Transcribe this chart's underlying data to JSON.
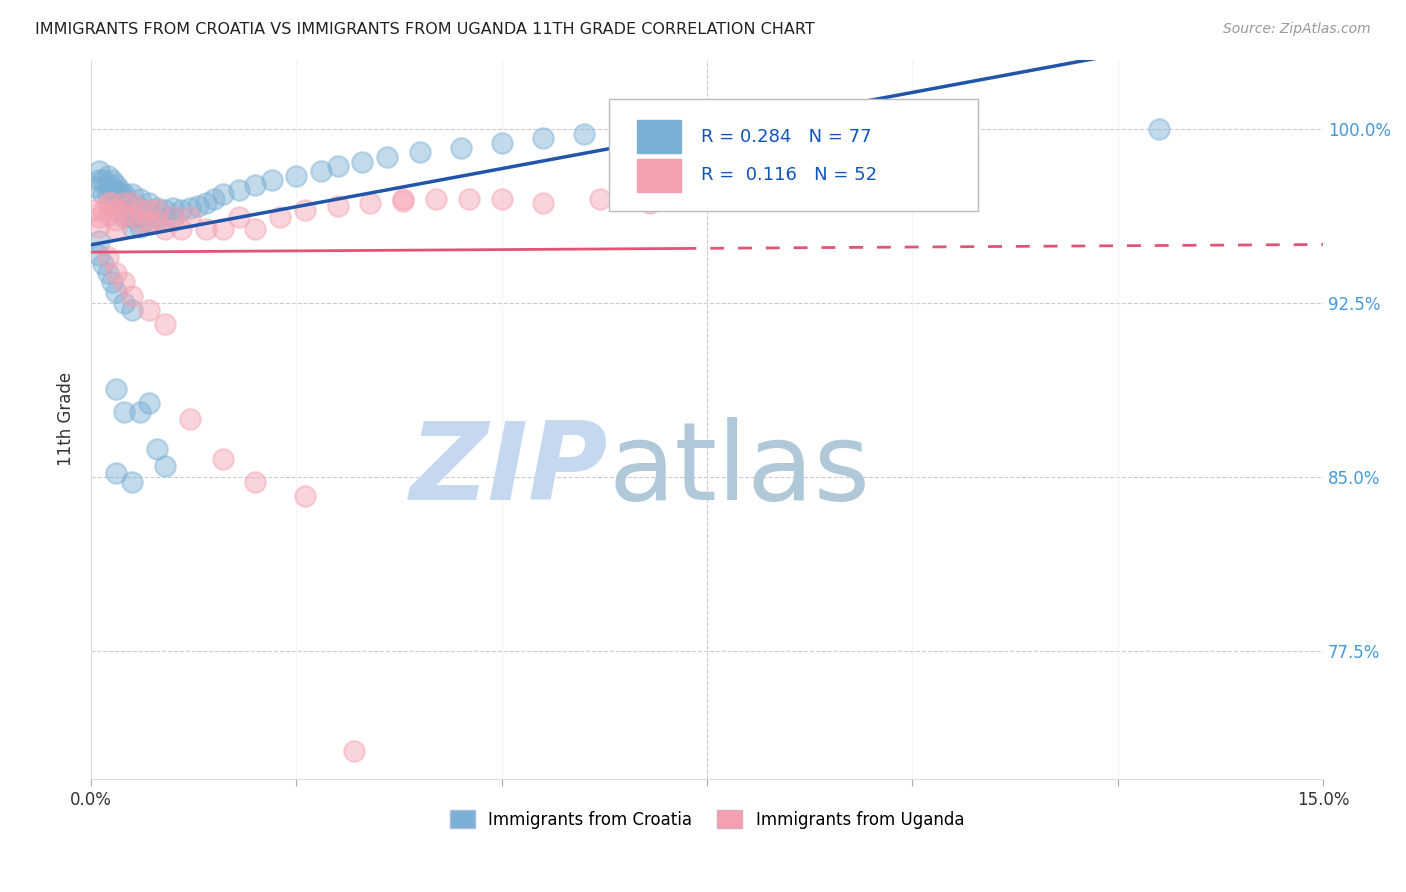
{
  "title": "IMMIGRANTS FROM CROATIA VS IMMIGRANTS FROM UGANDA 11TH GRADE CORRELATION CHART",
  "source": "Source: ZipAtlas.com",
  "ylabel": "11th Grade",
  "ytick_labels": [
    "100.0%",
    "92.5%",
    "85.0%",
    "77.5%"
  ],
  "ytick_values": [
    1.0,
    0.925,
    0.85,
    0.775
  ],
  "xlim": [
    0.0,
    0.15
  ],
  "ylim": [
    0.72,
    1.03
  ],
  "r_croatia": 0.284,
  "n_croatia": 77,
  "r_uganda": 0.116,
  "n_uganda": 52,
  "color_croatia": "#7BAFD4",
  "color_uganda": "#F4A0B0",
  "color_trendline_croatia": "#2255AA",
  "color_trendline_uganda": "#E05575",
  "watermark_zip": "ZIP",
  "watermark_atlas": "atlas",
  "watermark_color_zip": "#C5D8F0",
  "watermark_color_atlas": "#B0C8D8",
  "legend_label_croatia": "Immigrants from Croatia",
  "legend_label_uganda": "Immigrants from Uganda",
  "croatia_x": [
    0.0005,
    0.001,
    0.001,
    0.0015,
    0.0015,
    0.002,
    0.002,
    0.002,
    0.0025,
    0.0025,
    0.003,
    0.003,
    0.003,
    0.003,
    0.003,
    0.0035,
    0.0035,
    0.004,
    0.004,
    0.004,
    0.004,
    0.004,
    0.005,
    0.005,
    0.005,
    0.005,
    0.005,
    0.006,
    0.006,
    0.006,
    0.006,
    0.007,
    0.007,
    0.007,
    0.008,
    0.008,
    0.009,
    0.009,
    0.01,
    0.01,
    0.011,
    0.012,
    0.013,
    0.014,
    0.015,
    0.016,
    0.018,
    0.02,
    0.022,
    0.025,
    0.028,
    0.03,
    0.033,
    0.036,
    0.04,
    0.045,
    0.05,
    0.055,
    0.06,
    0.065,
    0.001,
    0.001,
    0.0015,
    0.002,
    0.0025,
    0.003,
    0.004,
    0.005,
    0.006,
    0.007,
    0.008,
    0.009,
    0.003,
    0.004,
    0.13,
    0.003,
    0.005
  ],
  "croatia_y": [
    0.975,
    0.982,
    0.978,
    0.978,
    0.972,
    0.98,
    0.976,
    0.972,
    0.978,
    0.974,
    0.976,
    0.974,
    0.972,
    0.968,
    0.965,
    0.974,
    0.968,
    0.972,
    0.97,
    0.968,
    0.965,
    0.962,
    0.972,
    0.968,
    0.965,
    0.962,
    0.958,
    0.97,
    0.966,
    0.962,
    0.958,
    0.968,
    0.964,
    0.96,
    0.966,
    0.962,
    0.965,
    0.961,
    0.966,
    0.962,
    0.965,
    0.966,
    0.967,
    0.968,
    0.97,
    0.972,
    0.974,
    0.976,
    0.978,
    0.98,
    0.982,
    0.984,
    0.986,
    0.988,
    0.99,
    0.992,
    0.994,
    0.996,
    0.998,
    1.0,
    0.952,
    0.946,
    0.942,
    0.938,
    0.934,
    0.93,
    0.925,
    0.922,
    0.878,
    0.882,
    0.862,
    0.855,
    0.888,
    0.878,
    1.0,
    0.852,
    0.848
  ],
  "uganda_x": [
    0.0005,
    0.001,
    0.001,
    0.0015,
    0.002,
    0.002,
    0.0025,
    0.003,
    0.003,
    0.003,
    0.004,
    0.004,
    0.005,
    0.005,
    0.006,
    0.006,
    0.007,
    0.007,
    0.008,
    0.008,
    0.009,
    0.01,
    0.011,
    0.012,
    0.014,
    0.016,
    0.018,
    0.02,
    0.023,
    0.026,
    0.03,
    0.034,
    0.038,
    0.042,
    0.046,
    0.05,
    0.055,
    0.062,
    0.068,
    0.072,
    0.002,
    0.003,
    0.004,
    0.005,
    0.007,
    0.009,
    0.012,
    0.016,
    0.02,
    0.026,
    0.032,
    0.038
  ],
  "uganda_y": [
    0.965,
    0.962,
    0.958,
    0.965,
    0.968,
    0.963,
    0.968,
    0.965,
    0.961,
    0.957,
    0.968,
    0.963,
    0.968,
    0.963,
    0.965,
    0.96,
    0.965,
    0.96,
    0.965,
    0.96,
    0.957,
    0.962,
    0.957,
    0.962,
    0.957,
    0.957,
    0.962,
    0.957,
    0.962,
    0.965,
    0.967,
    0.968,
    0.969,
    0.97,
    0.97,
    0.97,
    0.968,
    0.97,
    0.968,
    0.97,
    0.945,
    0.938,
    0.934,
    0.928,
    0.922,
    0.916,
    0.875,
    0.858,
    0.848,
    0.842,
    0.732,
    0.97
  ],
  "trendline_croatia_x0": 0.0,
  "trendline_croatia_x1": 0.15,
  "trendline_uganda_solid_end": 0.072,
  "trendline_uganda_x1": 0.15
}
